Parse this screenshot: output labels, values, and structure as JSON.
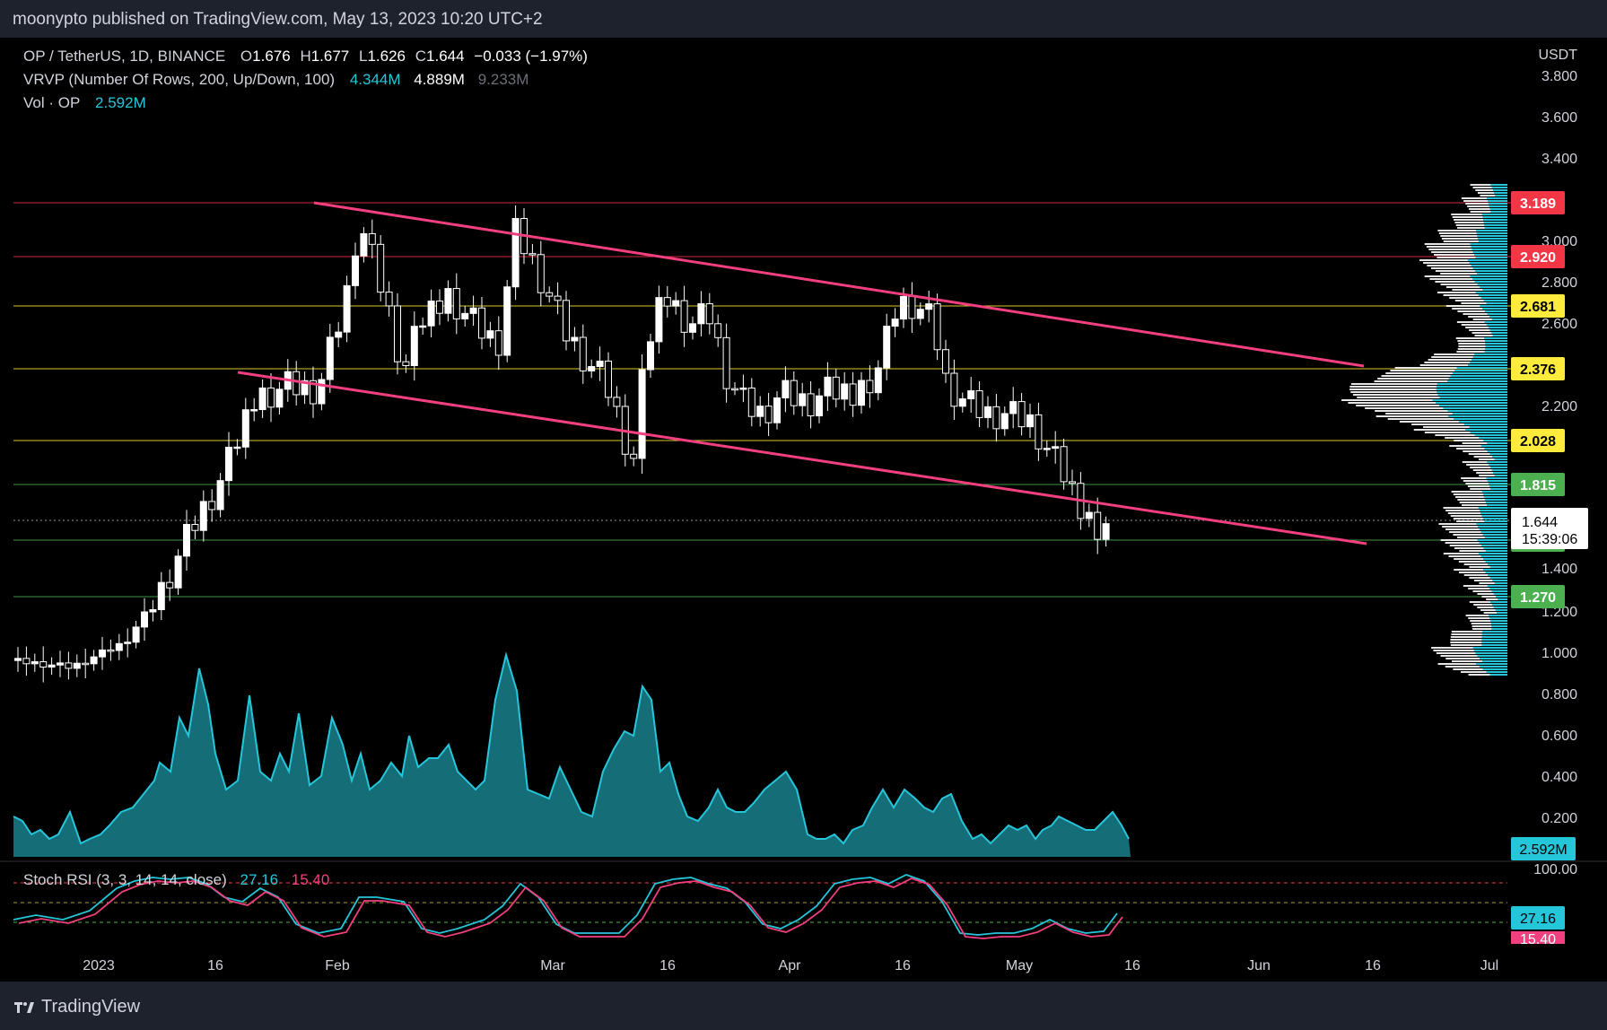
{
  "header": {
    "published_line": "moonypto published on TradingView.com, May 13, 2023 10:20 UTC+2"
  },
  "legend": {
    "symbol": "OP / TetherUS, 1D, BINANCE",
    "open_label": "O",
    "open": "1.676",
    "high_label": "H",
    "high": "1.677",
    "low_label": "L",
    "low": "1.626",
    "close_label": "C",
    "close": "1.644",
    "change": "−0.033 (−1.97%)",
    "vrvp": "VRVP (Number Of Rows, 200, Up/Down, 100)",
    "vrvp_up": "4.344M",
    "vrvp_down": "4.889M",
    "vrvp_total": "9.233M",
    "vol_label": "Vol · OP",
    "vol_value": "2.592M"
  },
  "price_axis": {
    "currency": "USDT",
    "ticks": [
      "3.800",
      "3.600",
      "3.400",
      "3.000",
      "2.800",
      "2.600",
      "2.200",
      "1.000",
      "0.800",
      "0.600",
      "0.400",
      "0.200"
    ],
    "partial_ticks": [
      "1.400",
      "1.200"
    ]
  },
  "levels": [
    {
      "value": "3.189",
      "color": "#f23645",
      "text_color": "#ffffff"
    },
    {
      "value": "2.920",
      "color": "#f23645",
      "text_color": "#ffffff"
    },
    {
      "value": "2.681",
      "color": "#ffeb3b",
      "text_color": "#000000"
    },
    {
      "value": "2.376",
      "color": "#ffeb3b",
      "text_color": "#000000"
    },
    {
      "value": "2.028",
      "color": "#ffeb3b",
      "text_color": "#000000"
    },
    {
      "value": "1.815",
      "color": "#4caf50",
      "text_color": "#ffffff"
    },
    {
      "value": "1.543",
      "color": "#4caf50",
      "text_color": "#ffffff"
    },
    {
      "value": "1.270",
      "color": "#4caf50",
      "text_color": "#ffffff"
    }
  ],
  "current_price": {
    "value": "1.644",
    "countdown": "15:39:06"
  },
  "volume_tag": "2.592M",
  "stoch_rsi": {
    "label": "Stoch RSI (3, 3, 14, 14, close)",
    "k": "27.16",
    "d": "15.40",
    "axis_top": "100.00",
    "k_tag": "27.16",
    "d_tag": "15.40",
    "k_color": "#26c6da",
    "d_color": "#f23f7f"
  },
  "time_axis": [
    "2023",
    "16",
    "Feb",
    "Mar",
    "16",
    "Apr",
    "16",
    "May",
    "16",
    "Jun",
    "16",
    "Jul"
  ],
  "footer": {
    "brand": "TradingView"
  },
  "colors": {
    "trendline": "#f23f7f",
    "volume": "#26c6da",
    "candle_up": "#ffffff",
    "candle_down": "#ffffff",
    "profile_up": "#26c6da",
    "profile_down": "#ffffff"
  },
  "chart_data": {
    "type": "candlestick",
    "symbol": "OP / TetherUS",
    "interval": "1D",
    "ylim": [
      0.8,
      3.8
    ],
    "ohlc_approx": [
      {
        "t": "Jan 1",
        "o": 0.96,
        "h": 0.98,
        "l": 0.94,
        "c": 0.95
      },
      {
        "t": "Jan 8",
        "o": 0.93,
        "h": 0.96,
        "l": 0.9,
        "c": 0.94
      },
      {
        "t": "Jan 12",
        "o": 1.02,
        "h": 1.1,
        "l": 1.0,
        "c": 1.08
      },
      {
        "t": "Jan 16",
        "o": 1.3,
        "h": 1.45,
        "l": 1.28,
        "c": 1.4
      },
      {
        "t": "Jan 20",
        "o": 1.75,
        "h": 1.9,
        "l": 1.7,
        "c": 1.8
      },
      {
        "t": "Jan 24",
        "o": 2.1,
        "h": 2.3,
        "l": 2.0,
        "c": 2.2
      },
      {
        "t": "Jan 28",
        "o": 2.25,
        "h": 2.4,
        "l": 2.05,
        "c": 2.15
      },
      {
        "t": "Feb 2",
        "o": 2.2,
        "h": 2.6,
        "l": 2.1,
        "c": 2.55
      },
      {
        "t": "Feb 5",
        "o": 2.8,
        "h": 3.25,
        "l": 2.75,
        "c": 3.1
      },
      {
        "t": "Feb 9",
        "o": 3.05,
        "h": 3.2,
        "l": 2.85,
        "c": 2.9
      },
      {
        "t": "Feb 13",
        "o": 2.7,
        "h": 2.8,
        "l": 2.35,
        "c": 2.4
      },
      {
        "t": "Feb 18",
        "o": 2.5,
        "h": 2.85,
        "l": 2.45,
        "c": 2.75
      },
      {
        "t": "Feb 22",
        "o": 2.7,
        "h": 2.8,
        "l": 2.45,
        "c": 2.55
      },
      {
        "t": "Feb 25",
        "o": 2.8,
        "h": 3.3,
        "l": 2.7,
        "c": 3.05
      },
      {
        "t": "Feb 28",
        "o": 2.95,
        "h": 3.05,
        "l": 2.7,
        "c": 2.75
      },
      {
        "t": "Mar 4",
        "o": 2.65,
        "h": 2.7,
        "l": 2.4,
        "c": 2.45
      },
      {
        "t": "Mar 8",
        "o": 2.35,
        "h": 2.45,
        "l": 2.1,
        "c": 2.15
      },
      {
        "t": "Mar 10",
        "o": 2.1,
        "h": 2.15,
        "l": 1.8,
        "c": 1.9
      },
      {
        "t": "Mar 14",
        "o": 2.4,
        "h": 2.95,
        "l": 2.35,
        "c": 2.75
      },
      {
        "t": "Mar 18",
        "o": 2.7,
        "h": 2.9,
        "l": 2.45,
        "c": 2.55
      },
      {
        "t": "Mar 22",
        "o": 2.55,
        "h": 2.65,
        "l": 2.35,
        "c": 2.4
      },
      {
        "t": "Mar 26",
        "o": 2.25,
        "h": 2.3,
        "l": 2.0,
        "c": 2.05
      },
      {
        "t": "Apr 1",
        "o": 2.2,
        "h": 2.35,
        "l": 2.1,
        "c": 2.25
      },
      {
        "t": "Apr 6",
        "o": 2.25,
        "h": 2.3,
        "l": 2.1,
        "c": 2.2
      },
      {
        "t": "Apr 11",
        "o": 2.3,
        "h": 2.4,
        "l": 2.2,
        "c": 2.35
      },
      {
        "t": "Apr 15",
        "o": 2.6,
        "h": 2.8,
        "l": 2.55,
        "c": 2.7
      },
      {
        "t": "Apr 19",
        "o": 2.7,
        "h": 2.75,
        "l": 2.5,
        "c": 2.55
      },
      {
        "t": "Apr 22",
        "o": 2.3,
        "h": 2.4,
        "l": 2.15,
        "c": 2.2
      },
      {
        "t": "Apr 27",
        "o": 2.2,
        "h": 2.3,
        "l": 2.1,
        "c": 2.15
      },
      {
        "t": "May 2",
        "o": 2.1,
        "h": 2.15,
        "l": 1.95,
        "c": 2.0
      },
      {
        "t": "May 6",
        "o": 1.9,
        "h": 1.95,
        "l": 1.72,
        "c": 1.75
      },
      {
        "t": "May 10",
        "o": 1.72,
        "h": 1.75,
        "l": 1.58,
        "c": 1.62
      },
      {
        "t": "May 13",
        "o": 1.676,
        "h": 1.677,
        "l": 1.626,
        "c": 1.644
      }
    ]
  }
}
